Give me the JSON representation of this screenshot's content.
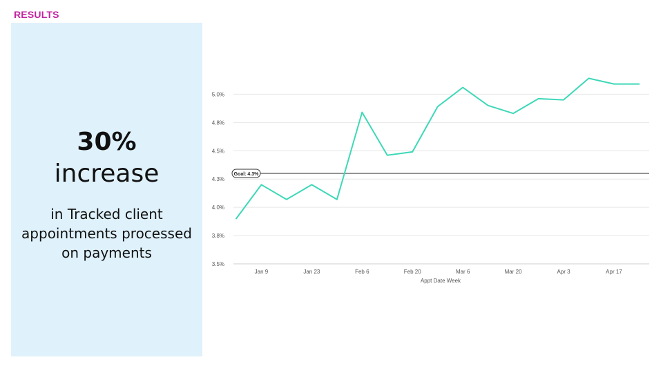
{
  "section_label": "RESULTS",
  "colors": {
    "section_label": "#c2229f",
    "panel_bg": "#dff1fb",
    "line": "#3ed8b8",
    "goal_line": "#555555",
    "gridline": "#e6e6e6",
    "tick_text": "#555555"
  },
  "panel": {
    "stat": "30%",
    "stat_word": "increase",
    "description_lines": [
      "in Tracked client",
      "appointments processed",
      "on payments"
    ]
  },
  "chart_data": {
    "type": "line",
    "title": "",
    "xlabel": "Appt Date Week",
    "ylabel": "",
    "x_tick_labels": [
      "Jan 9",
      "Jan 23",
      "Feb 6",
      "Feb 20",
      "Mar 6",
      "Mar 20",
      "Apr 3",
      "Apr 17"
    ],
    "x_tick_weeks": [
      1,
      3,
      5,
      7,
      9,
      11,
      13,
      15
    ],
    "y_tick_labels": [
      "3.5%",
      "3.8%",
      "4.0%",
      "4.3%",
      "4.5%",
      "4.8%",
      "5.0%"
    ],
    "y_tick_values": [
      3.5,
      3.75,
      4.0,
      4.25,
      4.5,
      4.75,
      5.0
    ],
    "ylim": [
      3.5,
      5.1
    ],
    "grid": true,
    "week_index": [
      0,
      1,
      2,
      3,
      4,
      5,
      6,
      7,
      8,
      9,
      10,
      11,
      12,
      13,
      14,
      15,
      16
    ],
    "values": [
      3.9,
      4.2,
      4.07,
      4.2,
      4.07,
      4.84,
      4.46,
      4.49,
      4.89,
      5.06,
      4.9,
      4.83,
      4.96,
      4.95,
      5.14,
      5.09,
      5.09
    ],
    "goal": {
      "label": "Goal: 4.3%",
      "value": 4.3
    }
  }
}
